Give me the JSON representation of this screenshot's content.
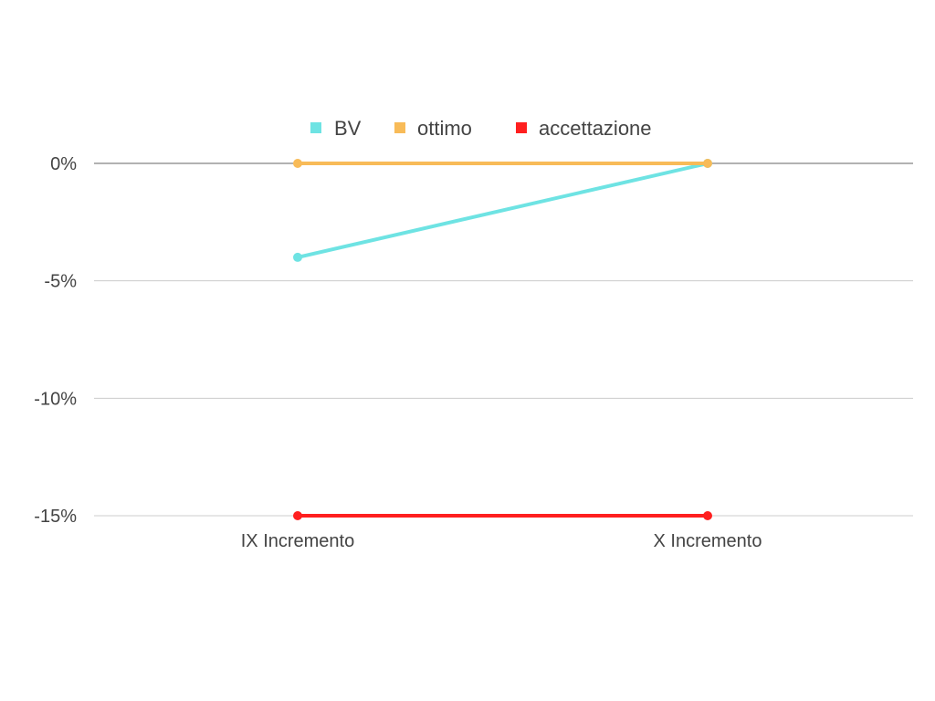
{
  "chart_data": {
    "type": "line",
    "categories": [
      "IX Incremento",
      "X Incremento"
    ],
    "series": [
      {
        "name": "BV",
        "values": [
          -4,
          0
        ],
        "color": "#6ee3e3"
      },
      {
        "name": "ottimo",
        "values": [
          0,
          0
        ],
        "color": "#f8bb58"
      },
      {
        "name": "accettazione",
        "values": [
          -15,
          -15
        ],
        "color": "#ff1f1f"
      }
    ],
    "y_ticks": [
      0,
      -5,
      -10,
      -15
    ],
    "y_tick_labels": [
      "0%",
      "-5%",
      "-10%",
      "-15%"
    ],
    "ylim": [
      -15,
      0
    ],
    "grid": true,
    "legend_position": "top"
  }
}
